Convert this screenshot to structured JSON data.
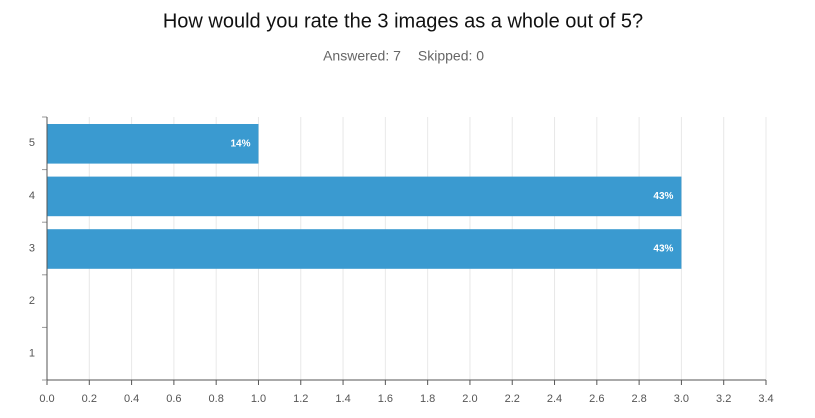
{
  "chart_data": {
    "type": "hbar",
    "title": "How would you rate the 3 images as a whole out of 5?",
    "subtitle": [
      "Answered: 7",
      "Skipped: 0"
    ],
    "categories": [
      "5",
      "4",
      "3",
      "2",
      "1"
    ],
    "values": [
      1,
      3,
      3,
      0,
      0
    ],
    "value_labels": [
      "14%",
      "43%",
      "43%",
      null,
      null
    ],
    "color": "#3a9ad0",
    "xlim": [
      0,
      3.4
    ],
    "xticks": [
      {
        "value": 0,
        "label": "0.0"
      },
      {
        "value": 0.2,
        "label": "0.2"
      },
      {
        "value": 0.4,
        "label": "0.4"
      },
      {
        "value": 0.6,
        "label": "0.6"
      },
      {
        "value": 0.8,
        "label": "0.8"
      },
      {
        "value": 1,
        "label": "1.0"
      },
      {
        "value": 1.2,
        "label": "1.2"
      },
      {
        "value": 1.4,
        "label": "1.4"
      },
      {
        "value": 1.6,
        "label": "1.6"
      },
      {
        "value": 1.8,
        "label": "1.8"
      },
      {
        "value": 2,
        "label": "2.0"
      },
      {
        "value": 2.2,
        "label": "2.2"
      },
      {
        "value": 2.4,
        "label": "2.4"
      },
      {
        "value": 2.6,
        "label": "2.6"
      },
      {
        "value": 2.8,
        "label": "2.8"
      },
      {
        "value": 3,
        "label": "3.0"
      },
      {
        "value": 3.2,
        "label": "3.2"
      },
      {
        "value": 3.4,
        "label": "3.4"
      }
    ],
    "grid": true
  }
}
